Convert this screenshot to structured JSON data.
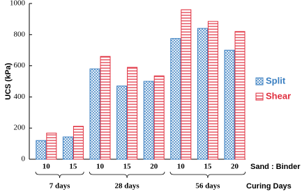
{
  "chart_data": {
    "type": "bar",
    "y_label": "UCS (kPa)",
    "x_label": "Sand : Binder",
    "group_label": "Curing Days",
    "groups": [
      {
        "label": "7 days",
        "categories": [
          "10",
          "15"
        ]
      },
      {
        "label": "28 days",
        "categories": [
          "10",
          "15",
          "20"
        ]
      },
      {
        "label": "56 days",
        "categories": [
          "10",
          "15",
          "20"
        ]
      }
    ],
    "series": [
      {
        "name": "Split",
        "color": "#3a7fc1",
        "pattern": "crosshatch",
        "values": [
          120,
          143,
          580,
          470,
          500,
          775,
          840,
          700
        ]
      },
      {
        "name": "Shear",
        "color": "#e0303f",
        "pattern": "horizontal",
        "values": [
          168,
          212,
          660,
          590,
          535,
          960,
          885,
          820
        ]
      }
    ],
    "ylim": [
      0,
      1000
    ],
    "yticks": [
      0,
      200,
      400,
      600,
      800,
      1000
    ],
    "legend": "right"
  }
}
